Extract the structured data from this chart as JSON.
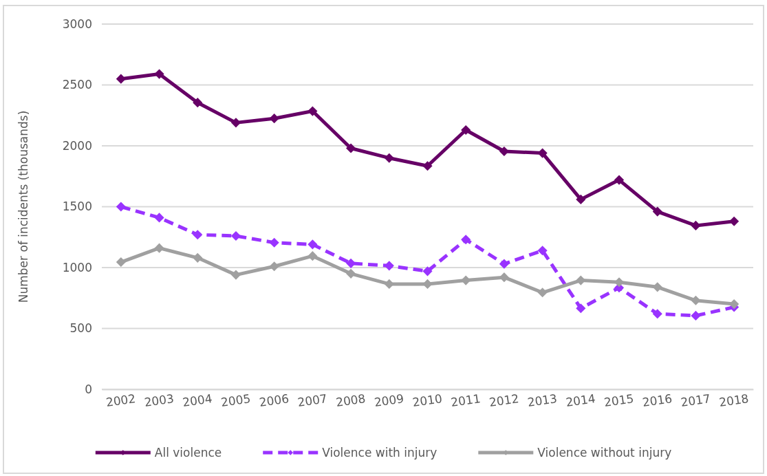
{
  "chart_data": {
    "type": "line",
    "ylabel": "Number of incidents (thousands)",
    "categories": [
      "2002",
      "2003",
      "2004",
      "2005",
      "2006",
      "2007",
      "2008",
      "2009",
      "2010",
      "2011",
      "2012",
      "2013",
      "2014",
      "2015",
      "2016",
      "2017",
      "2018"
    ],
    "series": [
      {
        "name": "All violence",
        "color": "#660066",
        "line_style": "solid",
        "values": [
          2550,
          2590,
          2355,
          2190,
          2225,
          2285,
          1980,
          1900,
          1835,
          2130,
          1955,
          1940,
          1560,
          1720,
          1460,
          1345,
          1380
        ]
      },
      {
        "name": "Violence with injury",
        "color": "#9933ff",
        "line_style": "dashed",
        "values": [
          1500,
          1410,
          1270,
          1260,
          1205,
          1190,
          1035,
          1015,
          970,
          1230,
          1030,
          1140,
          665,
          835,
          620,
          605,
          675
        ]
      },
      {
        "name": "Violence without injury",
        "color": "#a0a0a0",
        "line_style": "solid",
        "values": [
          1045,
          1160,
          1080,
          940,
          1010,
          1095,
          950,
          865,
          865,
          895,
          920,
          795,
          895,
          880,
          840,
          730,
          700
        ]
      }
    ],
    "ylim": [
      0,
      3000
    ],
    "yticks": [
      0,
      500,
      1000,
      1500,
      2000,
      2500,
      3000
    ],
    "grid": "y",
    "legend": "bottom",
    "marker": "diamond"
  }
}
